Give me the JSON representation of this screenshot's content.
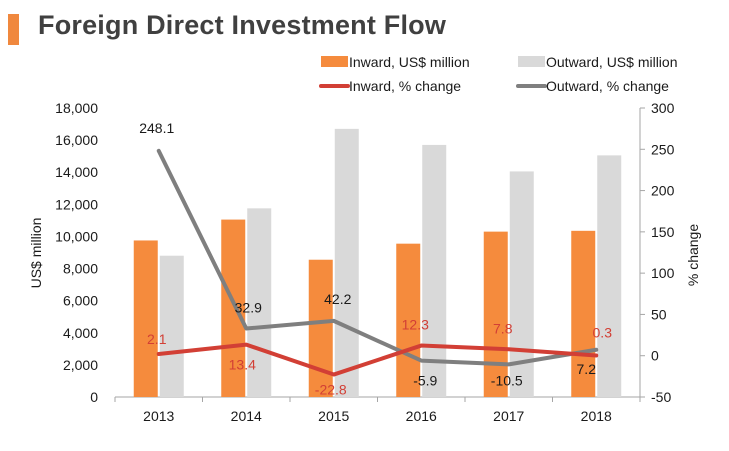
{
  "title": "Foreign Direct Investment Flow",
  "legend": {
    "inward_bar": "Inward, US$ million",
    "outward_bar": "Outward, US$ million",
    "inward_line": "Inward, % change",
    "outward_line": "Outward, % change"
  },
  "colors": {
    "inward_bar": "#f58b3d",
    "outward_bar": "#d9d9d9",
    "inward_line": "#d23f35",
    "outward_line": "#7f7f7f",
    "inward_label": "#d23f35",
    "outward_label": "#1a1a1a",
    "title_accent": "#f0883e"
  },
  "chart_data": {
    "type": "bar",
    "title": "Foreign Direct Investment Flow",
    "categories": [
      "2013",
      "2014",
      "2015",
      "2016",
      "2017",
      "2018"
    ],
    "series": [
      {
        "name": "Inward, US$ million",
        "kind": "bar",
        "axis": "left",
        "values": [
          9750,
          11050,
          8550,
          9550,
          10300,
          10350
        ]
      },
      {
        "name": "Outward, US$ million",
        "kind": "bar",
        "axis": "left",
        "values": [
          8800,
          11750,
          16700,
          15700,
          14050,
          15050
        ]
      },
      {
        "name": "Inward, % change",
        "kind": "line",
        "axis": "right",
        "values": [
          2.1,
          13.4,
          -22.8,
          12.3,
          7.8,
          0.3
        ],
        "labels": [
          "2.1",
          "13.4",
          "-22.8",
          "12.3",
          "7.8",
          "0.3"
        ]
      },
      {
        "name": "Outward, % change",
        "kind": "line",
        "axis": "right",
        "values": [
          248.1,
          32.9,
          42.2,
          -5.9,
          -10.5,
          7.2
        ],
        "labels": [
          "248.1",
          "32.9",
          "42.2",
          "-5.9",
          "-10.5",
          "7.2"
        ]
      }
    ],
    "ylabel": "US$ million",
    "y2label": "% change",
    "ylim": [
      0,
      18000
    ],
    "y2lim": [
      -50,
      300
    ],
    "yticks": [
      "0",
      "2,000",
      "4,000",
      "6,000",
      "8,000",
      "10,000",
      "12,000",
      "14,000",
      "16,000",
      "18,000"
    ],
    "ytick_values": [
      0,
      2000,
      4000,
      6000,
      8000,
      10000,
      12000,
      14000,
      16000,
      18000
    ],
    "y2ticks": [
      "-50",
      "0",
      "50",
      "100",
      "150",
      "200",
      "250",
      "300"
    ],
    "y2tick_values": [
      -50,
      0,
      50,
      100,
      150,
      200,
      250,
      300
    ],
    "legend_position": "top-right"
  }
}
